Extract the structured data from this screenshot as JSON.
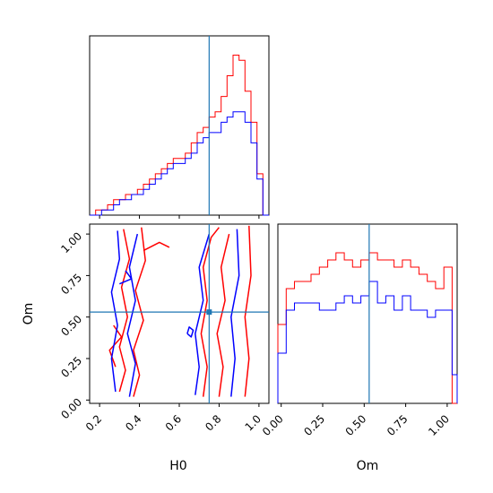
{
  "colors": {
    "series_red": "#ff0000",
    "series_blue": "#0000ff",
    "truth_line": "#1f77b4",
    "axes": "#000000"
  },
  "chart_data": [
    {
      "panel": "H0 marginal",
      "type": "histogram",
      "x_range": [
        0.15,
        1.05
      ],
      "bin_edges": [
        0.15,
        0.18,
        0.21,
        0.24,
        0.27,
        0.3,
        0.33,
        0.36,
        0.39,
        0.42,
        0.45,
        0.48,
        0.51,
        0.54,
        0.57,
        0.6,
        0.63,
        0.66,
        0.69,
        0.72,
        0.75,
        0.78,
        0.81,
        0.84,
        0.87,
        0.9,
        0.93,
        0.96,
        0.99,
        1.02,
        1.05
      ],
      "series": [
        {
          "values": [
            0,
            1,
            1,
            2,
            3,
            3,
            4,
            4,
            5,
            6,
            7,
            8,
            9,
            10,
            11,
            11,
            12,
            14,
            16,
            17,
            19,
            20,
            23,
            27,
            31,
            30,
            24,
            18,
            8,
            0
          ]
        },
        {
          "values": [
            0,
            0,
            1,
            1,
            2,
            3,
            3,
            4,
            4,
            5,
            6,
            7,
            8,
            9,
            10,
            10,
            11,
            12,
            14,
            15,
            16,
            16,
            18,
            19,
            20,
            20,
            18,
            14,
            7,
            0
          ]
        }
      ],
      "truth": 0.75,
      "ylim": [
        0,
        33
      ]
    },
    {
      "panel": "Om vs H0 joint",
      "type": "contour",
      "x_range": [
        0.15,
        1.05
      ],
      "y_range": [
        -0.02,
        1.06
      ],
      "xlabel": "H0",
      "ylabel": "Om",
      "xticks": [
        "0.2",
        "0.4",
        "0.6",
        "0.8",
        "1.0"
      ],
      "xtick_values": [
        0.2,
        0.4,
        0.6,
        0.8,
        1.0
      ],
      "yticks": [
        "0.00",
        "0.25",
        "0.50",
        "0.75",
        "1.00"
      ],
      "ytick_values": [
        0.0,
        0.25,
        0.5,
        0.75,
        1.0
      ],
      "truth": {
        "H0": 0.75,
        "Om": 0.53
      },
      "contours": [
        {
          "series": 0,
          "points": [
            [
              0.3,
              0.05
            ],
            [
              0.33,
              0.18
            ],
            [
              0.3,
              0.32
            ],
            [
              0.34,
              0.5
            ],
            [
              0.31,
              0.68
            ],
            [
              0.35,
              0.85
            ],
            [
              0.32,
              1.03
            ]
          ]
        },
        {
          "series": 0,
          "points": [
            [
              0.37,
              0.02
            ],
            [
              0.4,
              0.15
            ],
            [
              0.37,
              0.3
            ],
            [
              0.42,
              0.48
            ],
            [
              0.38,
              0.66
            ],
            [
              0.43,
              0.84
            ],
            [
              0.41,
              1.04
            ]
          ]
        },
        {
          "series": 0,
          "points": [
            [
              0.28,
              0.2
            ],
            [
              0.25,
              0.3
            ],
            [
              0.31,
              0.38
            ],
            [
              0.27,
              0.45
            ]
          ]
        },
        {
          "series": 0,
          "points": [
            [
              0.42,
              0.9
            ],
            [
              0.5,
              0.95
            ],
            [
              0.55,
              0.92
            ]
          ]
        },
        {
          "series": 0,
          "points": [
            [
              0.72,
              0.02
            ],
            [
              0.74,
              0.2
            ],
            [
              0.71,
              0.4
            ],
            [
              0.74,
              0.6
            ],
            [
              0.72,
              0.8
            ],
            [
              0.76,
              0.98
            ],
            [
              0.8,
              1.04
            ]
          ]
        },
        {
          "series": 0,
          "points": [
            [
              0.8,
              0.02
            ],
            [
              0.82,
              0.2
            ],
            [
              0.79,
              0.4
            ],
            [
              0.83,
              0.6
            ],
            [
              0.81,
              0.8
            ],
            [
              0.85,
              1.0
            ]
          ]
        },
        {
          "series": 0,
          "points": [
            [
              0.93,
              0.02
            ],
            [
              0.95,
              0.25
            ],
            [
              0.93,
              0.5
            ],
            [
              0.96,
              0.75
            ],
            [
              0.95,
              1.05
            ]
          ]
        },
        {
          "series": 1,
          "points": [
            [
              0.28,
              0.05
            ],
            [
              0.26,
              0.25
            ],
            [
              0.29,
              0.45
            ],
            [
              0.26,
              0.65
            ],
            [
              0.3,
              0.85
            ],
            [
              0.29,
              1.02
            ]
          ]
        },
        {
          "series": 1,
          "points": [
            [
              0.35,
              0.02
            ],
            [
              0.38,
              0.22
            ],
            [
              0.34,
              0.4
            ],
            [
              0.38,
              0.6
            ],
            [
              0.35,
              0.8
            ],
            [
              0.39,
              1.0
            ]
          ]
        },
        {
          "series": 1,
          "points": [
            [
              0.3,
              0.7
            ],
            [
              0.36,
              0.73
            ],
            [
              0.33,
              0.78
            ]
          ]
        },
        {
          "series": 1,
          "points": [
            [
              0.68,
              0.03
            ],
            [
              0.7,
              0.2
            ],
            [
              0.68,
              0.4
            ],
            [
              0.72,
              0.6
            ],
            [
              0.7,
              0.8
            ],
            [
              0.75,
              1.0
            ]
          ]
        },
        {
          "series": 1,
          "points": [
            [
              0.86,
              0.02
            ],
            [
              0.88,
              0.25
            ],
            [
              0.86,
              0.5
            ],
            [
              0.9,
              0.75
            ],
            [
              0.89,
              1.03
            ]
          ]
        },
        {
          "series": 1,
          "points": [
            [
              0.64,
              0.4
            ],
            [
              0.66,
              0.38
            ],
            [
              0.67,
              0.42
            ],
            [
              0.65,
              0.44
            ],
            [
              0.64,
              0.4
            ]
          ]
        }
      ]
    },
    {
      "panel": "Om marginal",
      "type": "histogram",
      "x_range": [
        -0.02,
        1.06
      ],
      "xlabel": "Om",
      "xticks": [
        "0.00",
        "0.25",
        "0.50",
        "0.75",
        "1.00"
      ],
      "xtick_values": [
        0.0,
        0.25,
        0.5,
        0.75,
        1.0
      ],
      "bin_edges": [
        -0.02,
        0.03,
        0.08,
        0.13,
        0.18,
        0.23,
        0.28,
        0.33,
        0.38,
        0.43,
        0.48,
        0.53,
        0.58,
        0.63,
        0.68,
        0.73,
        0.78,
        0.83,
        0.88,
        0.93,
        0.98,
        1.03,
        1.06
      ],
      "series": [
        {
          "values": [
            11,
            16,
            17,
            17,
            18,
            19,
            20,
            21,
            20,
            19,
            20,
            21,
            20,
            20,
            19,
            20,
            19,
            18,
            17,
            16,
            19,
            0
          ]
        },
        {
          "values": [
            7,
            13,
            14,
            14,
            14,
            13,
            13,
            14,
            15,
            14,
            15,
            17,
            14,
            15,
            13,
            15,
            13,
            13,
            12,
            13,
            13,
            4
          ]
        }
      ],
      "truth": 0.53,
      "ylim": [
        0,
        25
      ]
    }
  ]
}
